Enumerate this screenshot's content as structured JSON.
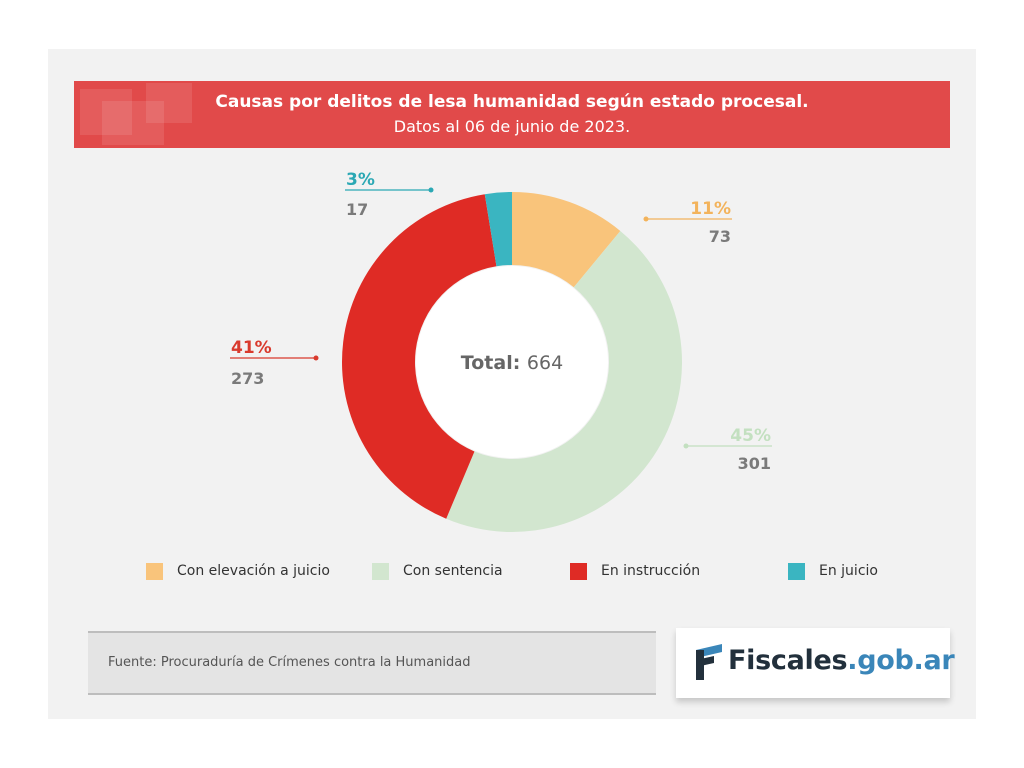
{
  "chart_data": {
    "type": "pie",
    "title": "Causas por delitos de lesa humanidad según estado procesal.",
    "subtitle": "Datos al 06 de junio de 2023.",
    "center_label": "Total:",
    "center_value": "664",
    "categories": [
      "Con elevación a juicio",
      "Con sentencia",
      "En instrucción",
      "En juicio"
    ],
    "values": [
      73,
      301,
      273,
      17
    ],
    "percent_labels": [
      "11%",
      "45%",
      "41%",
      "3%"
    ],
    "colors": [
      "#f9c47b",
      "#d2e6cf",
      "#df2b25",
      "#3ab5c1"
    ],
    "percent_colors": [
      "#f3b35b",
      "#c3e0c0",
      "#d93a2d",
      "#2ba8b4"
    ],
    "legend_position": "bottom"
  },
  "footer": {
    "source": "Fuente: Procuraduría de Crímenes contra la Humanidad"
  },
  "logo": {
    "main": "Fiscales",
    "suffix": ".gob.ar",
    "colors": {
      "dark": "#22303c",
      "blue": "#3a86b9"
    }
  }
}
